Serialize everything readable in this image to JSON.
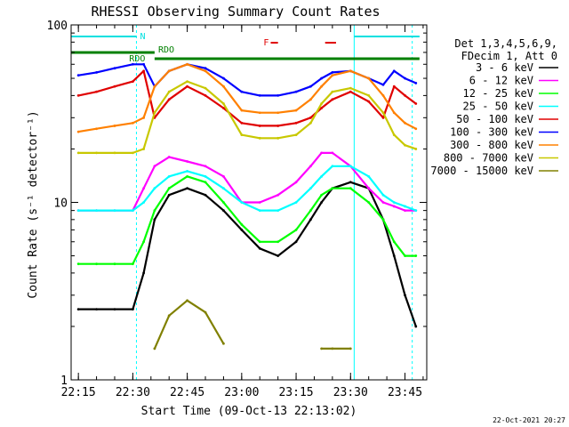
{
  "chart_data": {
    "type": "line",
    "title": "RHESSI Observing Summary Count Rates",
    "xlabel": "Start Time (09-Oct-13 22:13:02)",
    "ylabel": "Count Rate (s⁻¹ detector⁻¹)",
    "yscale": "log",
    "ylim": [
      1,
      100
    ],
    "xlim": [
      "22:13",
      "23:51"
    ],
    "x_ticks": [
      "22:15",
      "22:30",
      "22:45",
      "23:00",
      "23:15",
      "23:30",
      "23:45"
    ],
    "y_ticks": [
      "1",
      "10",
      "100"
    ],
    "legend_header": [
      "Det 1,3,4,5,6,9,",
      "FDecim 1, Att 0"
    ],
    "legend_position": "right",
    "timestamp": "22-Oct-2021 20:27",
    "flags": [
      {
        "label": "N",
        "color": "#00e0e0"
      },
      {
        "label": "RDO",
        "color": "#008000"
      },
      {
        "label": "RDO",
        "color": "#008000"
      },
      {
        "label": "F",
        "color": "#e00000"
      }
    ],
    "x": [
      "22:15",
      "22:20",
      "22:25",
      "22:30",
      "22:33",
      "22:36",
      "22:40",
      "22:45",
      "22:50",
      "22:55",
      "23:00",
      "23:05",
      "23:10",
      "23:15",
      "23:19",
      "23:22",
      "23:25",
      "23:30",
      "23:35",
      "23:39",
      "23:42",
      "23:45",
      "23:48"
    ],
    "series": [
      {
        "name": "3 - 6 keV",
        "color": "#000000",
        "values": [
          2.5,
          2.5,
          2.5,
          2.5,
          4,
          8,
          11,
          12,
          11,
          9,
          7,
          5.5,
          5,
          6,
          8,
          10,
          12,
          13,
          12,
          8,
          5,
          3,
          2
        ]
      },
      {
        "name": "6 - 12 keV",
        "color": "#ff00ff",
        "values": [
          9,
          9,
          9,
          9,
          12,
          16,
          18,
          17,
          16,
          14,
          10,
          10,
          11,
          13,
          16,
          19,
          19,
          16,
          12,
          10,
          9.5,
          9,
          9
        ]
      },
      {
        "name": "12 - 25 keV",
        "color": "#00ff00",
        "values": [
          4.5,
          4.5,
          4.5,
          4.5,
          6,
          9,
          12,
          14,
          13,
          10,
          7.5,
          6,
          6,
          7,
          9,
          11,
          12,
          12,
          10,
          8,
          6,
          5,
          5
        ]
      },
      {
        "name": "25 - 50 keV",
        "color": "#00ffff",
        "values": [
          9,
          9,
          9,
          9,
          10,
          12,
          14,
          15,
          14,
          12,
          10,
          9,
          9,
          10,
          12,
          14,
          16,
          16,
          14,
          11,
          10,
          9.5,
          9
        ]
      },
      {
        "name": "50 - 100 keV",
        "color": "#e00000",
        "values": [
          40,
          42,
          45,
          48,
          55,
          30,
          38,
          45,
          40,
          34,
          28,
          27,
          27,
          28,
          30,
          34,
          38,
          42,
          37,
          30,
          45,
          40,
          36
        ]
      },
      {
        "name": "100 - 300 keV",
        "color": "#0000ff",
        "values": [
          52,
          54,
          57,
          60,
          60,
          45,
          55,
          60,
          57,
          50,
          42,
          40,
          40,
          42,
          45,
          50,
          54,
          55,
          50,
          46,
          55,
          50,
          47
        ]
      },
      {
        "name": "300 - 800 keV",
        "color": "#ff8000",
        "values": [
          25,
          26,
          27,
          28,
          30,
          45,
          55,
          60,
          55,
          45,
          33,
          32,
          32,
          33,
          38,
          45,
          52,
          55,
          50,
          40,
          32,
          28,
          26
        ]
      },
      {
        "name": "800 - 7000 keV",
        "color": "#c8c800",
        "values": [
          19,
          19,
          19,
          19,
          20,
          32,
          42,
          48,
          44,
          36,
          24,
          23,
          23,
          24,
          28,
          36,
          42,
          44,
          40,
          32,
          24,
          21,
          20
        ]
      },
      {
        "name": "7000 - 15000 keV",
        "color": "#808000",
        "values": [
          null,
          null,
          null,
          null,
          null,
          1.5,
          2.3,
          2.8,
          2.4,
          1.6,
          null,
          null,
          null,
          null,
          null,
          1.5,
          1.5,
          1.5,
          null,
          null,
          null,
          null,
          null
        ]
      }
    ]
  }
}
